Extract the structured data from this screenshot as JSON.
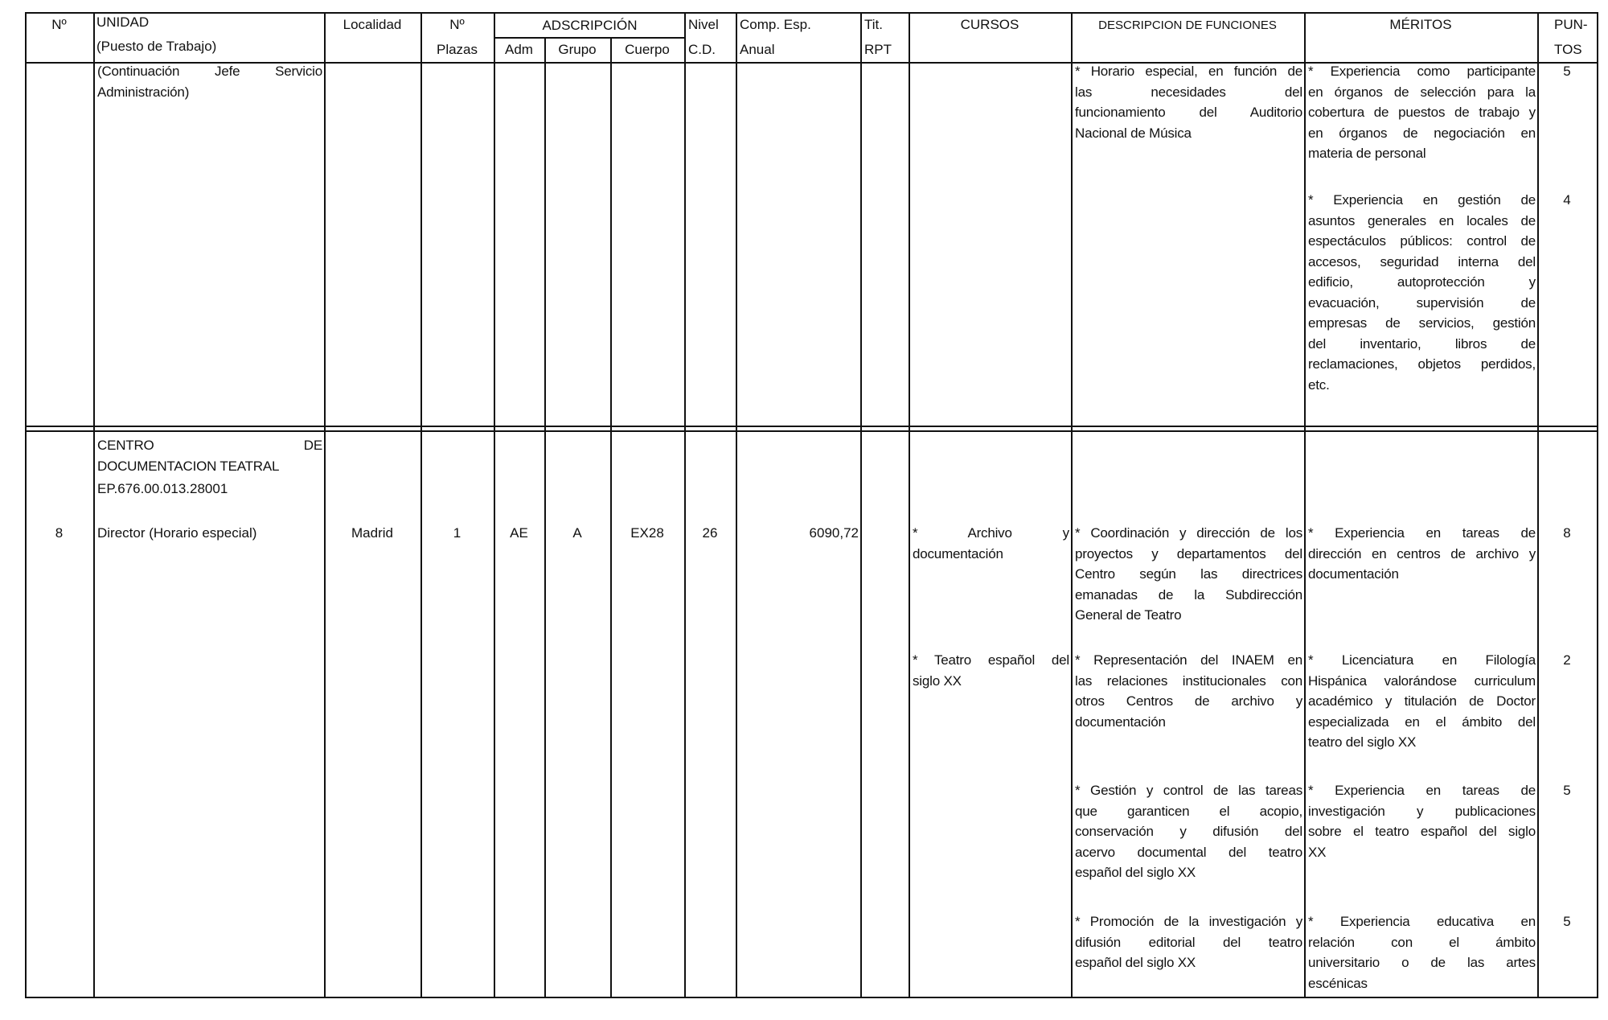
{
  "header": {
    "n": "Nº",
    "unidad": "UNIDAD",
    "puesto": "(Puesto de Trabajo)",
    "localidad": "Localidad",
    "n_plazas_1": "Nº",
    "n_plazas_2": "Plazas",
    "adscripcion": "ADSCRIPCIÓN",
    "adm": "Adm",
    "grupo": "Grupo",
    "cuerpo": "Cuerpo",
    "nivel_1": "Nivel",
    "nivel_2": "C.D.",
    "comp_1": "Comp. Esp.",
    "comp_2": "Anual",
    "tit_1": "Tit.",
    "tit_2": "RPT",
    "cursos": "CURSOS",
    "descripcion": "DESCRIPCION DE FUNCIONES",
    "meritos": "MÉRITOS",
    "puntos_1": "PUN-",
    "puntos_2": "TOS"
  },
  "continuation": {
    "unidad": [
      "(Continuación Jefe Servicio",
      "Administración)"
    ],
    "descripcion": [
      [
        "* Horario especial, en función de",
        "las necesidades del",
        "funcionamiento del Auditorio",
        "Nacional de Música"
      ]
    ],
    "meritos": [
      [
        "* Experiencia como participante",
        "en órganos de selección para la",
        "cobertura de puestos de trabajo y",
        "en órganos de negociación en",
        "materia de personal"
      ],
      [
        "* Experiencia en gestión de",
        "asuntos generales en locales de",
        "espectáculos públicos: control de",
        "accesos, seguridad interna del",
        "edificio, autoprotección y",
        "evacuación, supervisión de",
        "empresas de servicios, gestión",
        "del inventario, libros de",
        "reclamaciones, objetos perdidos,",
        "etc."
      ]
    ],
    "puntos": [
      "5",
      "4"
    ]
  },
  "section": {
    "unidad_title": [
      "CENTRO DE",
      "DOCUMENTACION TEATRAL"
    ],
    "code": "EP.676.00.013.28001",
    "row": {
      "n": "8",
      "puesto": "Director (Horario especial)",
      "localidad": "Madrid",
      "plazas": "1",
      "adm": "AE",
      "grupo": "A",
      "cuerpo": "EX28",
      "nivel": "26",
      "comp": "6090,72"
    },
    "cursos": [
      [
        "* Archivo y",
        "documentación"
      ],
      [
        "* Teatro español del",
        "siglo XX"
      ]
    ],
    "descripcion": [
      [
        "* Coordinación y dirección de los",
        "proyectos y departamentos del",
        "Centro según las directrices",
        "emanadas de la Subdirección",
        "General de Teatro"
      ],
      [
        "* Representación del INAEM en",
        "las relaciones institucionales con",
        "otros Centros de archivo y",
        "documentación"
      ],
      [
        "* Gestión y control de las tareas",
        "que garanticen el acopio,",
        "conservación y difusión del",
        "acervo documental del teatro",
        "español del siglo XX"
      ],
      [
        "* Promoción de la investigación y",
        "difusión editorial del teatro",
        "español del siglo XX"
      ]
    ],
    "meritos": [
      [
        "* Experiencia en tareas de",
        "dirección en centros de archivo y",
        "documentación"
      ],
      [
        "* Licenciatura en Filología",
        "Hispánica valorándose curriculum",
        "académico y titulación de Doctor",
        "especializada en el ámbito del",
        "teatro del siglo XX"
      ],
      [
        "* Experiencia en tareas de",
        "investigación y publicaciones",
        "sobre el teatro español del siglo",
        "XX"
      ],
      [
        "* Experiencia educativa en",
        "relación con el ámbito",
        "universitario o de las artes",
        "escénicas"
      ]
    ],
    "puntos": [
      "8",
      "2",
      "5",
      "5"
    ]
  }
}
